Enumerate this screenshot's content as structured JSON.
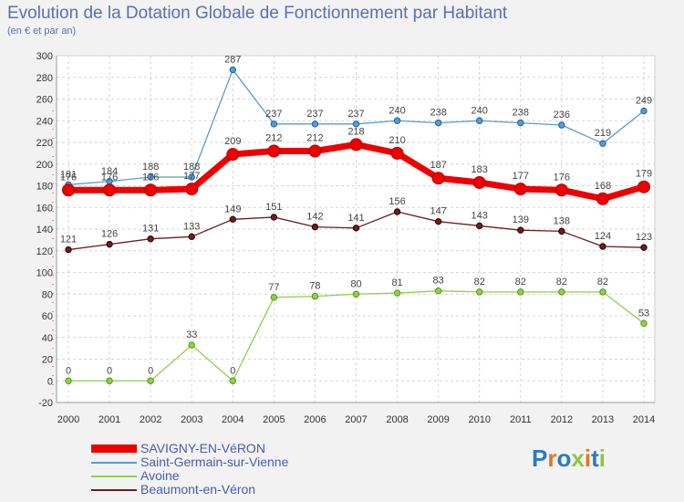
{
  "header": {
    "title": "Evolution de la Dotation Globale de Fonctionnement par Habitant",
    "subtitle": "(en € et par an)"
  },
  "brand": {
    "logo_text": "Proxiti"
  },
  "chart_data": {
    "type": "line",
    "title": "Evolution de la Dotation Globale de Fonctionnement par Habitant",
    "subtitle": "(en € et par an)",
    "xlabel": "",
    "ylabel": "",
    "x": [
      "2000",
      "2001",
      "2002",
      "2003",
      "2004",
      "2005",
      "2006",
      "2007",
      "2008",
      "2009",
      "2010",
      "2011",
      "2012",
      "2013",
      "2014"
    ],
    "ylim": [
      -20,
      300
    ],
    "yticks": [
      -20,
      0,
      20,
      40,
      60,
      80,
      100,
      120,
      140,
      160,
      180,
      200,
      220,
      240,
      260,
      280,
      300
    ],
    "grid": true,
    "legend_position": "bottom",
    "series": [
      {
        "name": "Saint-Germain-sur-Vienne",
        "color": "#5a9bd5",
        "values": [
          181,
          184,
          188,
          188,
          287,
          237,
          237,
          237,
          240,
          238,
          240,
          238,
          236,
          219,
          249
        ]
      },
      {
        "name": "Avoine",
        "color": "#8fd14f",
        "values": [
          0,
          0,
          0,
          33,
          0,
          77,
          78,
          80,
          81,
          83,
          82,
          82,
          82,
          82,
          53
        ]
      },
      {
        "name": "Beaumont-en-Véron",
        "color": "#6b1f1f",
        "values": [
          121,
          126,
          131,
          133,
          149,
          151,
          142,
          141,
          156,
          147,
          143,
          139,
          138,
          124,
          123
        ]
      },
      {
        "name": "SAVIGNY-EN-VéRON",
        "color": "#ee0000",
        "highlight": true,
        "values": [
          176,
          176,
          176,
          177,
          209,
          212,
          212,
          218,
          210,
          187,
          183,
          177,
          176,
          168,
          179
        ]
      }
    ],
    "legend_order": [
      "SAVIGNY-EN-VéRON",
      "Saint-Germain-sur-Vienne",
      "Avoine",
      "Beaumont-en-Véron"
    ]
  }
}
